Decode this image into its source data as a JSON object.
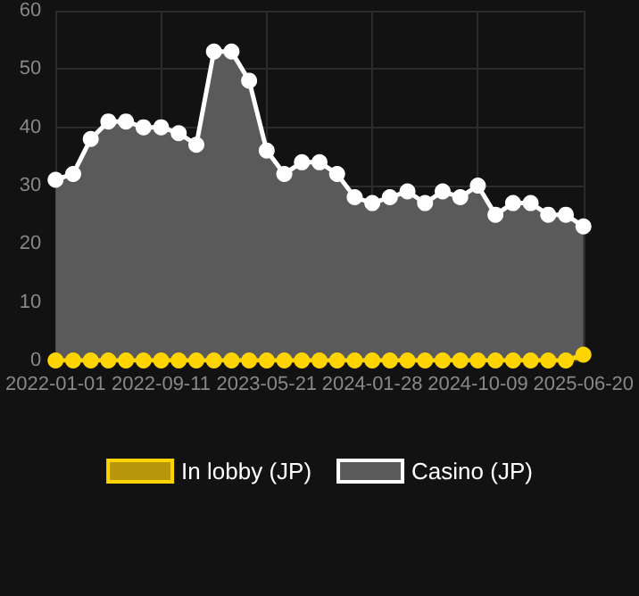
{
  "chart_data": {
    "type": "area",
    "categories": [
      "2022-01-01",
      null,
      null,
      null,
      null,
      null,
      "2022-09-11",
      null,
      null,
      null,
      null,
      null,
      "2023-05-21",
      null,
      null,
      null,
      null,
      null,
      "2024-01-28",
      null,
      null,
      null,
      null,
      null,
      "2024-10-09",
      null,
      null,
      null,
      null,
      null,
      "2025-06-20"
    ],
    "series": [
      {
        "name": "In lobby (JP)",
        "color": "#ffd400",
        "values": [
          0,
          0,
          0,
          0,
          0,
          0,
          0,
          0,
          0,
          0,
          0,
          0,
          0,
          0,
          0,
          0,
          0,
          0,
          0,
          0,
          0,
          0,
          0,
          0,
          0,
          0,
          0,
          0,
          0,
          0,
          1
        ]
      },
      {
        "name": "Casino (JP)",
        "color": "#ffffff",
        "values": [
          31,
          32,
          38,
          41,
          41,
          40,
          40,
          39,
          37,
          53,
          53,
          48,
          36,
          32,
          34,
          34,
          32,
          28,
          27,
          28,
          29,
          27,
          29,
          28,
          30,
          25,
          27,
          27,
          25,
          25,
          23
        ]
      }
    ],
    "ylim": [
      0,
      60
    ],
    "yticks": [
      0,
      10,
      20,
      30,
      40,
      50,
      60
    ],
    "grid": true,
    "legend": "bottom",
    "marker": "circle",
    "line_style": "solid"
  }
}
